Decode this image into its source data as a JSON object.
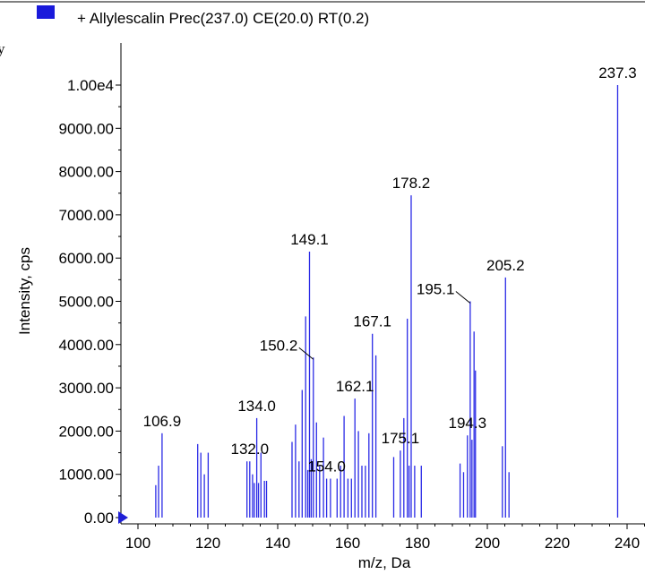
{
  "colors": {
    "series": "#2a2ae6",
    "legend": "#1a1adb",
    "axis": "#000000",
    "origin_marker": "#1f1fd6"
  },
  "fragment_text": "y",
  "chart_data": {
    "type": "bar",
    "title": "",
    "legend": {
      "entries": [
        "+ Allylescalin Prec(237.0) CE(20.0) RT(0.2)"
      ],
      "placement": "top-left"
    },
    "xlabel": "m/z, Da",
    "ylabel": "Intensity, cps",
    "xlim": [
      93,
      247
    ],
    "ylim": [
      0,
      10400
    ],
    "x_ticks": [
      100,
      120,
      140,
      160,
      180,
      200,
      220,
      240
    ],
    "x_tick_labels": [
      "100",
      "120",
      "140",
      "160",
      "180",
      "200",
      "220",
      "240"
    ],
    "y_ticks": [
      0,
      1000,
      2000,
      3000,
      4000,
      5000,
      6000,
      7000,
      8000,
      9000,
      10000
    ],
    "y_tick_labels": [
      "0.00",
      "1000.00",
      "2000.00",
      "3000.00",
      "4000.00",
      "5000.00",
      "6000.00",
      "7000.00",
      "8000.00",
      "9000.00",
      "1.00e4"
    ],
    "grid": false,
    "series": [
      {
        "name": "+ Allylescalin Prec(237.0) CE(20.0) RT(0.2)",
        "peaks": [
          {
            "x": 105.1,
            "y": 750
          },
          {
            "x": 105.9,
            "y": 1200
          },
          {
            "x": 106.9,
            "y": 1950
          },
          {
            "x": 117.1,
            "y": 1700
          },
          {
            "x": 118.0,
            "y": 1500
          },
          {
            "x": 119.0,
            "y": 1000
          },
          {
            "x": 120.1,
            "y": 1500
          },
          {
            "x": 131.2,
            "y": 1300
          },
          {
            "x": 132.0,
            "y": 1300
          },
          {
            "x": 132.8,
            "y": 1000
          },
          {
            "x": 133.3,
            "y": 800
          },
          {
            "x": 134.0,
            "y": 2300
          },
          {
            "x": 134.5,
            "y": 800
          },
          {
            "x": 135.2,
            "y": 1500
          },
          {
            "x": 136.2,
            "y": 850
          },
          {
            "x": 136.8,
            "y": 850
          },
          {
            "x": 144.1,
            "y": 1750
          },
          {
            "x": 145.1,
            "y": 2150
          },
          {
            "x": 146.1,
            "y": 1300
          },
          {
            "x": 147.0,
            "y": 2950
          },
          {
            "x": 148.0,
            "y": 4650
          },
          {
            "x": 148.6,
            "y": 1100
          },
          {
            "x": 149.1,
            "y": 6150
          },
          {
            "x": 149.6,
            "y": 1350
          },
          {
            "x": 150.2,
            "y": 3700
          },
          {
            "x": 151.1,
            "y": 2200
          },
          {
            "x": 152.0,
            "y": 1200
          },
          {
            "x": 153.1,
            "y": 1850
          },
          {
            "x": 154.0,
            "y": 900
          },
          {
            "x": 155.1,
            "y": 900
          },
          {
            "x": 157.0,
            "y": 900
          },
          {
            "x": 158.0,
            "y": 1200
          },
          {
            "x": 159.0,
            "y": 2350
          },
          {
            "x": 160.1,
            "y": 900
          },
          {
            "x": 161.1,
            "y": 900
          },
          {
            "x": 162.1,
            "y": 2750
          },
          {
            "x": 163.1,
            "y": 2000
          },
          {
            "x": 164.1,
            "y": 1200
          },
          {
            "x": 165.1,
            "y": 1200
          },
          {
            "x": 166.1,
            "y": 1950
          },
          {
            "x": 167.1,
            "y": 4250
          },
          {
            "x": 168.1,
            "y": 3750
          },
          {
            "x": 173.2,
            "y": 1400
          },
          {
            "x": 175.1,
            "y": 1550
          },
          {
            "x": 176.1,
            "y": 2300
          },
          {
            "x": 177.1,
            "y": 4600
          },
          {
            "x": 177.6,
            "y": 1200
          },
          {
            "x": 178.2,
            "y": 7450
          },
          {
            "x": 179.2,
            "y": 1200
          },
          {
            "x": 181.1,
            "y": 1200
          },
          {
            "x": 192.2,
            "y": 1250
          },
          {
            "x": 193.2,
            "y": 1050
          },
          {
            "x": 194.3,
            "y": 1900
          },
          {
            "x": 195.1,
            "y": 5000
          },
          {
            "x": 195.6,
            "y": 1800
          },
          {
            "x": 196.2,
            "y": 4300
          },
          {
            "x": 196.6,
            "y": 3400
          },
          {
            "x": 204.3,
            "y": 1650
          },
          {
            "x": 205.2,
            "y": 5550
          },
          {
            "x": 206.2,
            "y": 1050
          },
          {
            "x": 237.3,
            "y": 10000
          }
        ]
      }
    ],
    "peak_labels": [
      {
        "text": "106.9",
        "x": 106.9,
        "y": 1950,
        "leader": false
      },
      {
        "text": "132.0",
        "x": 132.0,
        "y": 1300,
        "leader": false
      },
      {
        "text": "134.0",
        "x": 134.0,
        "y": 2300,
        "leader": false
      },
      {
        "text": "149.1",
        "x": 149.1,
        "y": 6150,
        "leader": false
      },
      {
        "text": "150.2",
        "x": 150.2,
        "y": 3700,
        "leader": true
      },
      {
        "text": "154.0",
        "x": 154.0,
        "y": 900,
        "leader": false
      },
      {
        "text": "162.1",
        "x": 162.1,
        "y": 2750,
        "leader": false
      },
      {
        "text": "167.1",
        "x": 167.1,
        "y": 4250,
        "leader": false
      },
      {
        "text": "175.1",
        "x": 175.1,
        "y": 1550,
        "leader": false
      },
      {
        "text": "178.2",
        "x": 178.2,
        "y": 7450,
        "leader": false
      },
      {
        "text": "194.3",
        "x": 194.3,
        "y": 1900,
        "leader": false
      },
      {
        "text": "195.1",
        "x": 195.1,
        "y": 5000,
        "leader": true
      },
      {
        "text": "205.2",
        "x": 205.2,
        "y": 5550,
        "leader": false
      },
      {
        "text": "237.3",
        "x": 237.3,
        "y": 10000,
        "leader": false
      }
    ]
  }
}
